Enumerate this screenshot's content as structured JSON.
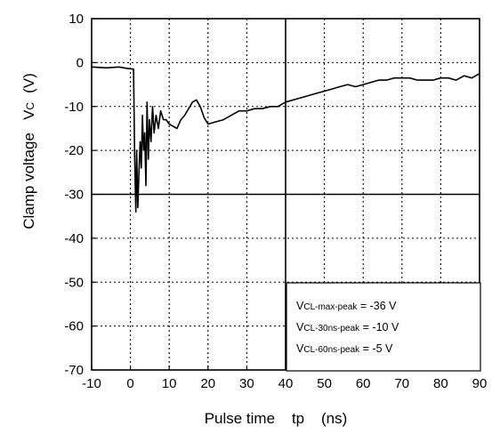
{
  "chart_data": {
    "type": "line",
    "xlabel": "Pulse time    tp    (ns)",
    "ylabel": "Clamp voltage   V",
    "ylabel_sub": "C",
    "ylabel_unit": "(V)",
    "xlim": [
      -10,
      90
    ],
    "ylim": [
      -70,
      10
    ],
    "x_ticks": [
      -10,
      0,
      10,
      20,
      30,
      40,
      50,
      60,
      70,
      80,
      90
    ],
    "y_ticks": [
      -70,
      -60,
      -50,
      -40,
      -30,
      -20,
      -10,
      0,
      10
    ],
    "grid": true,
    "series": [
      {
        "color": "#000000",
        "x": [
          -10,
          -6,
          -3,
          -1,
          0.8,
          1.1,
          1.4,
          1.6,
          1.9,
          2.2,
          2.5,
          2.8,
          3.1,
          3.4,
          3.7,
          4.0,
          4.3,
          4.6,
          4.9,
          5.3,
          5.7,
          6.1,
          6.6,
          7.2,
          7.8,
          8.5,
          9.2,
          10,
          11,
          12,
          13,
          14,
          15,
          16,
          17,
          18,
          19,
          20,
          22,
          24,
          26,
          28,
          30,
          32,
          34,
          36,
          38,
          40,
          42,
          44,
          46,
          48,
          50,
          52,
          54,
          56,
          58,
          60,
          62,
          64,
          66,
          68,
          70,
          72,
          74,
          76,
          78,
          80,
          82,
          84,
          86,
          88,
          90
        ],
        "y": [
          -1,
          -1.2,
          -1,
          -1.3,
          -1.5,
          -22,
          -34,
          -20,
          -33,
          -25,
          -18,
          -24,
          -12,
          -20,
          -16,
          -28,
          -9,
          -22,
          -13,
          -18,
          -10,
          -16,
          -12,
          -15,
          -11,
          -13,
          -13,
          -14,
          -14.5,
          -15,
          -13,
          -12,
          -10.5,
          -9,
          -8.5,
          -10,
          -12.5,
          -14,
          -13.5,
          -13,
          -12,
          -11,
          -11,
          -10.5,
          -10.5,
          -10,
          -10,
          -9,
          -8.5,
          -8,
          -7.5,
          -7,
          -6.5,
          -6,
          -5.5,
          -5,
          -5.5,
          -5,
          -4.5,
          -4,
          -4,
          -3.5,
          -3.5,
          -3.5,
          -4,
          -4,
          -4,
          -3.5,
          -3.5,
          -4,
          -3,
          -3.5,
          -2.5
        ]
      }
    ],
    "annotations": [
      {
        "main": "V",
        "sub": "CL-max-peak",
        "rest": " = -36 V"
      },
      {
        "main": "V",
        "sub": "CL-30ns-peak",
        "rest": " = -10 V"
      },
      {
        "main": "V",
        "sub": "CL-60ns-peak",
        "rest": " = -5 V"
      }
    ]
  }
}
